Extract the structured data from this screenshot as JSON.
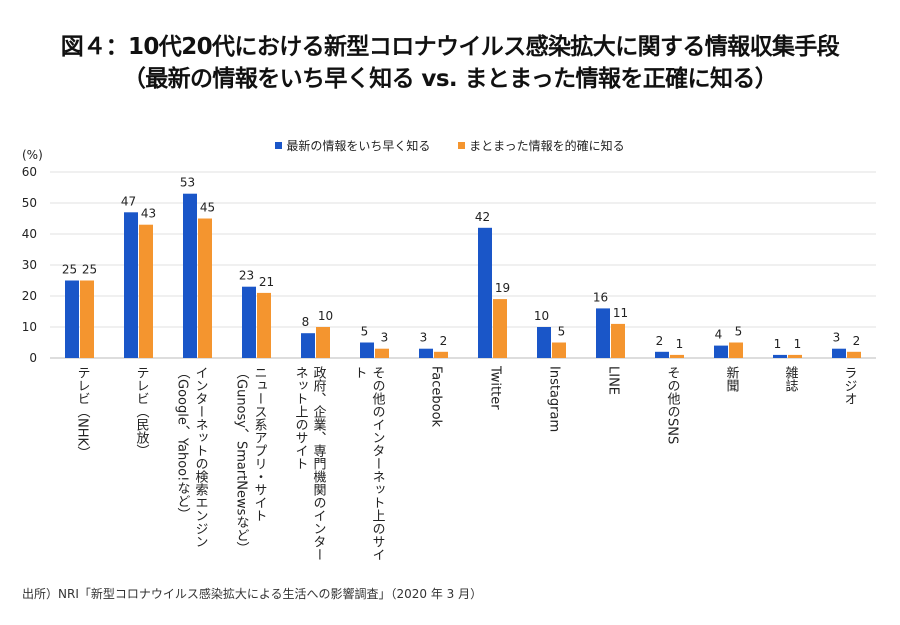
{
  "title_line1": "図４：10代20代における新型コロナウイルス感染拡大に関する情報収集手段",
  "title_line2": "（最新の情報をいち早く知る vs. まとまった情報を正確に知る）",
  "source": "出所）NRI「新型コロナウイルス感染拡大による生活への影響調査」（2020 年 3 月）",
  "chart_data": {
    "type": "bar",
    "ylabel": "(%)",
    "ylim": [
      0,
      60
    ],
    "yticks": [
      0,
      10,
      20,
      30,
      40,
      50,
      60
    ],
    "grid": true,
    "legend_position": "top-center",
    "categories": [
      "テレビ（NHK）",
      "テレビ（民放）",
      "インターネットの検索エンジン（Google、Yahoo!など）",
      "ニュース系アプリ・サイト（Gunosy、SmartNewsなど）",
      "政府、企業、専門機関のインターネット上のサイト",
      "その他のインターネット上のサイト",
      "Facebook",
      "Twitter",
      "Instagram",
      "LINE",
      "その他のSNS",
      "新聞",
      "雑誌",
      "ラジオ"
    ],
    "series": [
      {
        "name": "最新の情報をいち早く知る",
        "color": "#1a56c8",
        "values": [
          25,
          47,
          53,
          23,
          8,
          5,
          3,
          42,
          10,
          16,
          2,
          4,
          1,
          3
        ]
      },
      {
        "name": "まとまった情報を的確に知る",
        "color": "#f4952f",
        "values": [
          25,
          43,
          45,
          21,
          10,
          3,
          2,
          19,
          5,
          11,
          1,
          5,
          1,
          2
        ]
      }
    ]
  }
}
